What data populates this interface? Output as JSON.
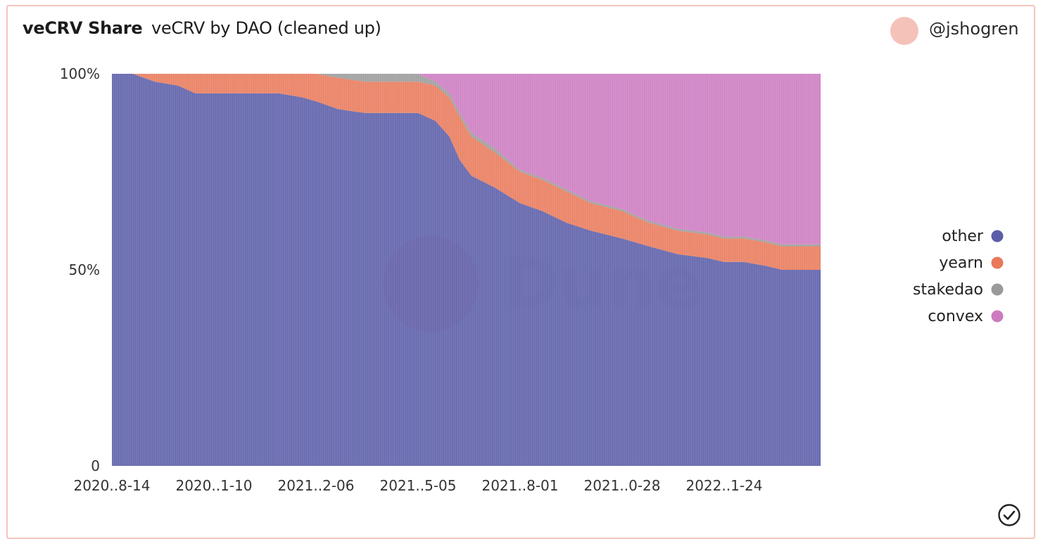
{
  "header": {
    "title": "veCRV Share",
    "subtitle": "veCRV by DAO (cleaned up)",
    "username": "@jshogren",
    "avatar_color": "#f5c2ba"
  },
  "status_icon": "check-circle-icon",
  "watermark": "Dune",
  "chart_data": {
    "type": "area",
    "stacking": "percent",
    "title": "veCRV by DAO (cleaned up)",
    "xlabel": "",
    "ylabel": "",
    "ylim": [
      0,
      100
    ],
    "y_ticks": [
      "0",
      "50%",
      "100%"
    ],
    "x_ticks": [
      "2020..8-14",
      "2020..1-10",
      "2021..2-06",
      "2021..5-05",
      "2021..8-01",
      "2021..0-28",
      "2022..1-24"
    ],
    "x_tick_dates": [
      "2020-08-14",
      "2020-11-10",
      "2021-02-06",
      "2021-05-05",
      "2021-08-01",
      "2021-10-28",
      "2022-01-24"
    ],
    "legend_position": "right",
    "grid": false,
    "series": [
      {
        "name": "other",
        "color": "#5b5da8",
        "x": [
          "2020-08-14",
          "2020-09-01",
          "2020-09-20",
          "2020-10-10",
          "2020-10-25",
          "2020-11-10",
          "2020-12-10",
          "2021-01-05",
          "2021-01-25",
          "2021-02-06",
          "2021-02-25",
          "2021-03-20",
          "2021-04-10",
          "2021-05-05",
          "2021-05-20",
          "2021-06-01",
          "2021-06-10",
          "2021-06-20",
          "2021-07-10",
          "2021-08-01",
          "2021-08-20",
          "2021-09-10",
          "2021-10-01",
          "2021-10-28",
          "2021-11-20",
          "2021-12-15",
          "2022-01-10",
          "2022-01-24",
          "2022-02-10",
          "2022-03-01",
          "2022-03-15"
        ],
        "values": [
          100,
          100,
          98,
          97,
          95,
          95,
          95,
          95,
          94,
          93,
          91,
          90,
          90,
          90,
          88,
          84,
          78,
          74,
          71,
          67,
          65,
          62,
          60,
          58,
          56,
          54,
          53,
          52,
          52,
          51,
          50
        ]
      },
      {
        "name": "yearn",
        "color": "#e8795a",
        "x": [
          "2020-08-14",
          "2020-09-01",
          "2020-09-20",
          "2020-10-10",
          "2020-10-25",
          "2020-11-10",
          "2020-12-10",
          "2021-01-05",
          "2021-01-25",
          "2021-02-06",
          "2021-02-25",
          "2021-03-20",
          "2021-04-10",
          "2021-05-05",
          "2021-05-20",
          "2021-06-01",
          "2021-06-10",
          "2021-06-20",
          "2021-07-10",
          "2021-08-01",
          "2021-08-20",
          "2021-09-10",
          "2021-10-01",
          "2021-10-28",
          "2021-11-20",
          "2021-12-15",
          "2022-01-10",
          "2022-01-24",
          "2022-02-10",
          "2022-03-01",
          "2022-03-15"
        ],
        "values": [
          0,
          0,
          2,
          3,
          5,
          5,
          5,
          5,
          6,
          7,
          8,
          8,
          8,
          8,
          9,
          10,
          11,
          10,
          9,
          8,
          8,
          8,
          7,
          7,
          6,
          6,
          6,
          6,
          6,
          6,
          6
        ]
      },
      {
        "name": "stakedao",
        "color": "#9a9a9a",
        "x": [
          "2020-08-14",
          "2020-09-01",
          "2020-09-20",
          "2020-10-10",
          "2020-10-25",
          "2020-11-10",
          "2020-12-10",
          "2021-01-05",
          "2021-01-25",
          "2021-02-06",
          "2021-02-25",
          "2021-03-20",
          "2021-04-10",
          "2021-05-05",
          "2021-05-20",
          "2021-06-01",
          "2021-06-10",
          "2021-06-20",
          "2021-07-10",
          "2021-08-01",
          "2021-08-20",
          "2021-09-10",
          "2021-10-01",
          "2021-10-28",
          "2021-11-20",
          "2021-12-15",
          "2022-01-10",
          "2022-01-24",
          "2022-02-10",
          "2022-03-01",
          "2022-03-15"
        ],
        "values": [
          0,
          0,
          0,
          0,
          0,
          0,
          0,
          0,
          0,
          0,
          1,
          2,
          2,
          2,
          1,
          1,
          1,
          1,
          1,
          0.5,
          0.5,
          0.5,
          0.5,
          0.5,
          0.5,
          0.5,
          0.5,
          0.5,
          0.5,
          0.5,
          0.5
        ]
      },
      {
        "name": "convex",
        "color": "#cc7bc0",
        "x": [
          "2020-08-14",
          "2020-09-01",
          "2020-09-20",
          "2020-10-10",
          "2020-10-25",
          "2020-11-10",
          "2020-12-10",
          "2021-01-05",
          "2021-01-25",
          "2021-02-06",
          "2021-02-25",
          "2021-03-20",
          "2021-04-10",
          "2021-05-05",
          "2021-05-20",
          "2021-06-01",
          "2021-06-10",
          "2021-06-20",
          "2021-07-10",
          "2021-08-01",
          "2021-08-20",
          "2021-09-10",
          "2021-10-01",
          "2021-10-28",
          "2021-11-20",
          "2021-12-15",
          "2022-01-10",
          "2022-01-24",
          "2022-02-10",
          "2022-03-01",
          "2022-03-15"
        ],
        "values": [
          0,
          0,
          0,
          0,
          0,
          0,
          0,
          0,
          0,
          0,
          0,
          0,
          0,
          0,
          2,
          5,
          10,
          15,
          19,
          24.5,
          26.5,
          29.5,
          32.5,
          34.5,
          37.5,
          39.5,
          40.5,
          41.5,
          41.5,
          42.5,
          43.5
        ]
      }
    ]
  }
}
